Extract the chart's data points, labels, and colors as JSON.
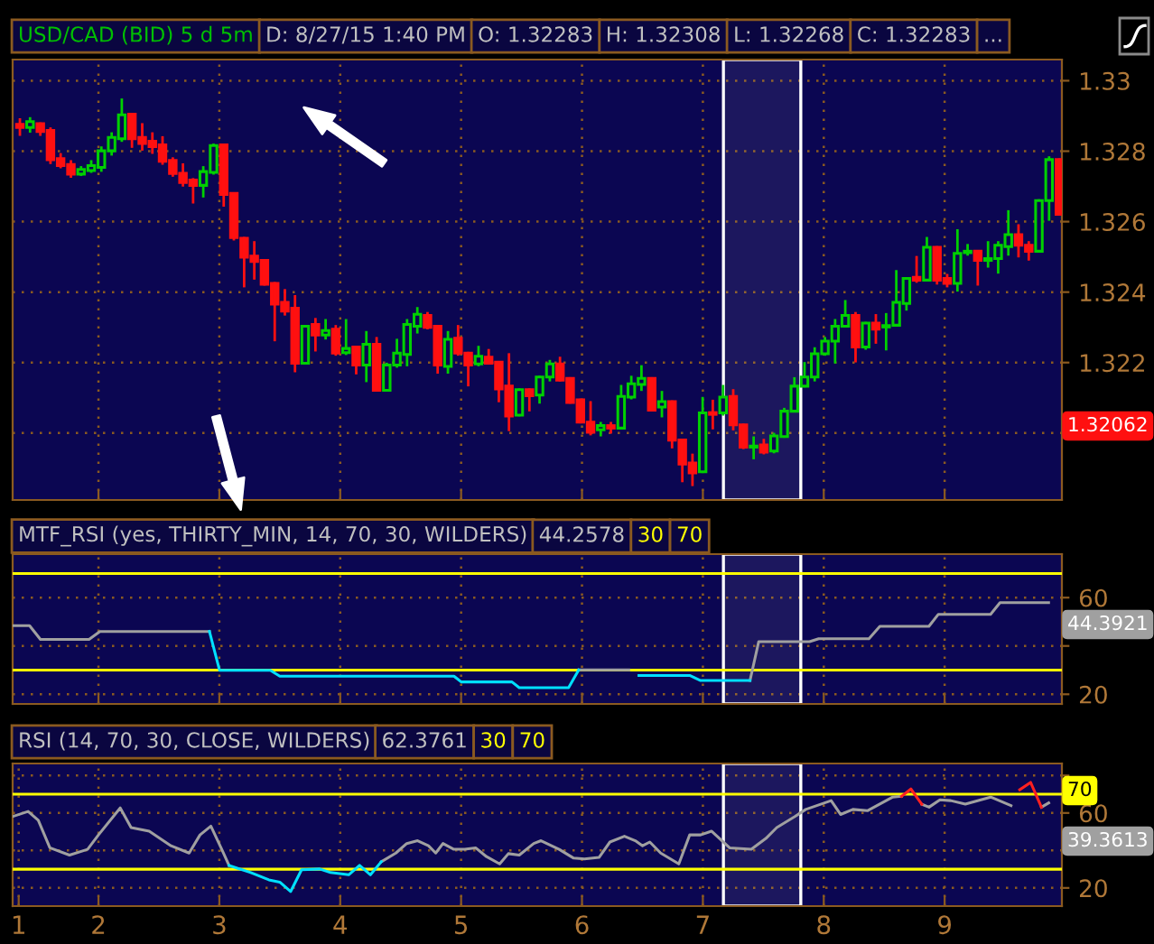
{
  "chart_data": [
    {
      "type": "candlestick",
      "title": "USD/CAD (BID) 5 d 5m",
      "annotations": [
        "D: 8/27/15 1:40 PM",
        "O: 1.32283",
        "H: 1.32308",
        "L: 1.32268",
        "C: 1.32283",
        "...",
        "1.32062"
      ],
      "colors": [
        "#ff1010",
        "#00d000",
        "#ff1010",
        "#ff1010",
        "#ff1010",
        "#ff1010",
        "#00d000",
        "#00d000",
        "#00d000",
        "#00d000",
        "#00d000",
        "#ff1010",
        "#ff1010",
        "#ff1010",
        "#ff1010",
        "#ff1010",
        "#ff1010",
        "#ff1010",
        "#00d000",
        "#00d000",
        "#ff1010",
        "#ff1010",
        "#ff1010",
        "#ff1010",
        "#ff1010",
        "#ff1010",
        "#ff1010",
        "#ff1010",
        "#00d000",
        "#ff1010",
        "#00d000",
        "#ff1010",
        "#00d000",
        "#ff1010",
        "#00d000",
        "#ff1010",
        "#00d000",
        "#00d000",
        "#00d000",
        "#00d000",
        "#ff1010",
        "#ff1010",
        "#00d000",
        "#ff1010",
        "#ff1010",
        "#00d000",
        "#ff1010",
        "#ff1010",
        "#ff1010",
        "#00d000",
        "#ff1010",
        "#00d000",
        "#00d000",
        "#ff1010",
        "#ff1010",
        "#ff1010",
        "#ff1010",
        "#00d000",
        "#ff1010",
        "#00d000",
        "#00d000",
        "#00d000",
        "#ff1010",
        "#00d000",
        "#ff1010",
        "#ff1010",
        "#ff1010",
        "#00d000",
        "#ff1010",
        "#00d000",
        "#ff1010",
        "#ff1010",
        "#00d000",
        "#ff1010",
        "#00d000",
        "#00d000",
        "#00d000",
        "#00d000",
        "#00d000",
        "#00d000",
        "#00d000",
        "#00d000",
        "#ff1010",
        "#00d000",
        "#ff1010",
        "#00d000",
        "#00d000",
        "#00d000",
        "#ff1010",
        "#00d000",
        "#ff1010",
        "#ff1010",
        "#00d000",
        "#00d000",
        "#ff1010",
        "#00d000",
        "#00d000",
        "#00d000",
        "#ff1010",
        "#ff1010",
        "#00d000",
        "#00d000",
        "#ff1010"
      ],
      "x": [
        1.35,
        1.434,
        1.519,
        1.603,
        1.687,
        1.772,
        1.856,
        1.94,
        2.024,
        2.109,
        2.193,
        2.277,
        2.362,
        2.446,
        2.53,
        2.615,
        2.699,
        2.783,
        2.867,
        2.952,
        3.036,
        3.12,
        3.205,
        3.289,
        3.373,
        3.458,
        3.542,
        3.626,
        3.71,
        3.795,
        3.879,
        3.963,
        4.048,
        4.132,
        4.216,
        4.301,
        4.385,
        4.469,
        4.553,
        4.638,
        4.722,
        4.806,
        4.891,
        4.975,
        5.059,
        5.144,
        5.228,
        5.312,
        5.396,
        5.481,
        5.565,
        5.649,
        5.734,
        5.818,
        5.902,
        5.987,
        6.071,
        6.155,
        6.239,
        6.324,
        6.408,
        6.492,
        6.577,
        6.661,
        6.745,
        6.83,
        6.914,
        6.998,
        7.082,
        7.167,
        7.251,
        7.335,
        7.42,
        7.504,
        7.588,
        7.673,
        7.757,
        7.841,
        7.925,
        8.01,
        8.094,
        8.178,
        8.263,
        8.347,
        8.431,
        8.516,
        8.6,
        8.684,
        8.768,
        8.853,
        8.937,
        9.021,
        9.106,
        9.19,
        9.274,
        9.359,
        9.443,
        9.527,
        9.611,
        9.696,
        9.78,
        9.864,
        9.949
      ],
      "ohlc": [
        [
          1.32876,
          1.3289,
          1.32847,
          1.32867
        ],
        [
          1.32867,
          1.32893,
          1.32856,
          1.32884
        ],
        [
          1.32878,
          1.32878,
          1.32847,
          1.32856
        ],
        [
          1.32859,
          1.32864,
          1.32767,
          1.32776
        ],
        [
          1.32779,
          1.32791,
          1.32755,
          1.32759
        ],
        [
          1.32762,
          1.32771,
          1.32728,
          1.32735
        ],
        [
          1.32735,
          1.32754,
          1.32733,
          1.32748
        ],
        [
          1.32745,
          1.32771,
          1.32742,
          1.32759
        ],
        [
          1.32754,
          1.3281,
          1.32745,
          1.32801
        ],
        [
          1.32801,
          1.3285,
          1.32791,
          1.32839
        ],
        [
          1.32835,
          1.32946,
          1.3283,
          1.32903
        ],
        [
          1.32905,
          1.32905,
          1.32813,
          1.32835
        ],
        [
          1.32839,
          1.32876,
          1.32805,
          1.32822
        ],
        [
          1.32828,
          1.3285,
          1.32796,
          1.32813
        ],
        [
          1.32818,
          1.32839,
          1.32765,
          1.32771
        ],
        [
          1.32774,
          1.32779,
          1.32731,
          1.32737
        ],
        [
          1.32737,
          1.32762,
          1.32703,
          1.32711
        ],
        [
          1.32718,
          1.3272,
          1.32655,
          1.32703
        ],
        [
          1.32703,
          1.32754,
          1.32672,
          1.32742
        ],
        [
          1.3274,
          1.32818,
          1.32737,
          1.32816
        ],
        [
          1.32818,
          1.32818,
          1.32646,
          1.32677
        ],
        [
          1.3268,
          1.3268,
          1.3255,
          1.32555
        ],
        [
          1.32553,
          1.32553,
          1.32417,
          1.32499
        ],
        [
          1.32502,
          1.32541,
          1.32439,
          1.32487
        ],
        [
          1.3249,
          1.3249,
          1.32422,
          1.32422
        ],
        [
          1.32425,
          1.32425,
          1.32264,
          1.32366
        ],
        [
          1.32371,
          1.32405,
          1.32337,
          1.32346
        ],
        [
          1.32354,
          1.32388,
          1.32176,
          1.32198
        ],
        [
          1.32198,
          1.32303,
          1.32198,
          1.32303
        ],
        [
          1.32308,
          1.32323,
          1.32235,
          1.32278
        ],
        [
          1.32278,
          1.3232,
          1.32269,
          1.32291
        ],
        [
          1.32295,
          1.32303,
          1.32223,
          1.32227
        ],
        [
          1.32228,
          1.3232,
          1.32225,
          1.3224
        ],
        [
          1.32244,
          1.32244,
          1.3217,
          1.32193
        ],
        [
          1.32193,
          1.32286,
          1.32148,
          1.32252
        ],
        [
          1.32252,
          1.32269,
          1.32121,
          1.32121
        ],
        [
          1.32121,
          1.32196,
          1.32121,
          1.32193
        ],
        [
          1.32193,
          1.32264,
          1.32189,
          1.32227
        ],
        [
          1.32223,
          1.3232,
          1.32193,
          1.32308
        ],
        [
          1.32303,
          1.32354,
          1.32286,
          1.32337
        ],
        [
          1.32334,
          1.3234,
          1.32298,
          1.323
        ],
        [
          1.32303,
          1.32303,
          1.32172,
          1.32193
        ],
        [
          1.32189,
          1.32286,
          1.32172,
          1.32266
        ],
        [
          1.32269,
          1.32303,
          1.32223,
          1.32227
        ],
        [
          1.32227,
          1.32227,
          1.32136,
          1.32193
        ],
        [
          1.32196,
          1.32244,
          1.32193,
          1.32218
        ],
        [
          1.32215,
          1.32235,
          1.32198,
          1.32198
        ],
        [
          1.32201,
          1.32201,
          1.32091,
          1.32125
        ],
        [
          1.32133,
          1.32223,
          1.32009,
          1.32048
        ],
        [
          1.32051,
          1.32123,
          1.32051,
          1.32123
        ],
        [
          1.32123,
          1.32123,
          1.32065,
          1.32106
        ],
        [
          1.32108,
          1.32159,
          1.32087,
          1.32159
        ],
        [
          1.32159,
          1.32204,
          1.3215,
          1.32196
        ],
        [
          1.32196,
          1.32213,
          1.3215,
          1.3215
        ],
        [
          1.32155,
          1.32155,
          1.32087,
          1.32087
        ],
        [
          1.32094,
          1.32094,
          1.32031,
          1.32031
        ],
        [
          1.32031,
          1.32087,
          1.31997,
          1.32002
        ],
        [
          1.32009,
          1.32028,
          1.31994,
          1.32021
        ],
        [
          1.32021,
          1.32028,
          1.32002,
          1.32014
        ],
        [
          1.32014,
          1.32133,
          1.32014,
          1.32104
        ],
        [
          1.32102,
          1.32159,
          1.32099,
          1.3214
        ],
        [
          1.32138,
          1.32189,
          1.32123,
          1.32155
        ],
        [
          1.32155,
          1.32155,
          1.32065,
          1.32065
        ],
        [
          1.32074,
          1.32116,
          1.32048,
          1.32089
        ],
        [
          1.32089,
          1.32089,
          1.3196,
          1.3198
        ],
        [
          1.3198,
          1.3198,
          1.31864,
          1.31912
        ],
        [
          1.31915,
          1.31938,
          1.31853,
          1.31887
        ],
        [
          1.3189,
          1.32099,
          1.3189,
          1.32057
        ],
        [
          1.32058,
          1.32091,
          1.32014,
          1.32053
        ],
        [
          1.32057,
          1.32133,
          1.32053,
          1.32102
        ],
        [
          1.32104,
          1.32121,
          1.32011,
          1.32023
        ],
        [
          1.32023,
          1.32023,
          1.31958,
          1.3196
        ],
        [
          1.3196,
          1.31987,
          1.31929,
          1.31963
        ],
        [
          1.31966,
          1.3198,
          1.31943,
          1.31946
        ],
        [
          1.31949,
          1.31997,
          1.31946,
          1.31992
        ],
        [
          1.3199,
          1.32068,
          1.3199,
          1.32062
        ],
        [
          1.32062,
          1.32155,
          1.32062,
          1.32133
        ],
        [
          1.32133,
          1.32198,
          1.32133,
          1.32159
        ],
        [
          1.32159,
          1.3224,
          1.3215,
          1.32225
        ],
        [
          1.32225,
          1.32269,
          1.32223,
          1.32261
        ],
        [
          1.32261,
          1.3232,
          1.32201,
          1.32303
        ],
        [
          1.32303,
          1.32374,
          1.32303,
          1.32334
        ],
        [
          1.32334,
          1.3234,
          1.32204,
          1.32244
        ],
        [
          1.32244,
          1.32312,
          1.3224,
          1.32312
        ],
        [
          1.32312,
          1.32334,
          1.32257,
          1.32295
        ],
        [
          1.32301,
          1.32337,
          1.32238,
          1.32305
        ],
        [
          1.32306,
          1.32459,
          1.32306,
          1.32371
        ],
        [
          1.32368,
          1.32439,
          1.32351,
          1.32439
        ],
        [
          1.32442,
          1.32499,
          1.3243,
          1.32434
        ],
        [
          1.32434,
          1.32553,
          1.32434,
          1.32527
        ],
        [
          1.32527,
          1.32527,
          1.32425,
          1.32434
        ],
        [
          1.32439,
          1.32448,
          1.32417,
          1.32425
        ],
        [
          1.32425,
          1.32575,
          1.32405,
          1.3251
        ],
        [
          1.32512,
          1.32533,
          1.32507,
          1.32516
        ],
        [
          1.32516,
          1.32516,
          1.32422,
          1.3249
        ],
        [
          1.3249,
          1.32541,
          1.32473,
          1.32495
        ],
        [
          1.32495,
          1.32541,
          1.32456,
          1.32533
        ],
        [
          1.32529,
          1.32629,
          1.32507,
          1.32563
        ],
        [
          1.32563,
          1.32589,
          1.32502,
          1.32533
        ],
        [
          1.32533,
          1.32541,
          1.32493,
          1.32516
        ],
        [
          1.32516,
          1.3266,
          1.32516,
          1.3266
        ],
        [
          1.3266,
          1.32782,
          1.32606,
          1.32776
        ],
        [
          1.32776,
          1.32776,
          1.32621,
          1.32621
        ]
      ],
      "xlim": [
        1.29,
        9.97
      ],
      "ylim": [
        1.3181,
        1.3306
      ],
      "xticks": [
        2,
        3,
        4,
        5,
        6,
        7,
        8,
        9
      ],
      "yticks": [
        {
          "value": 1.32,
          "label": null
        },
        1.322,
        1.324,
        1.326,
        1.328,
        1.33
      ],
      "bands": [
        {
          "axis": "x",
          "from": 7.17,
          "to": 7.81,
          "color": "#ffffff"
        }
      ],
      "tick_labels": "y",
      "grid": true
    },
    {
      "type": "line",
      "title": "MTF_RSI (yes, THIRTY_MIN, 14, 70, 30, WILDERS)",
      "bands": [
        {
          "axis": "x",
          "from": 7.17,
          "to": 7.81,
          "color": "#ffffff"
        }
      ],
      "annotations": [
        "44.2578",
        "44.3921"
      ],
      "series": [
        {
          "color": "#a0a0a0",
          "x": [
            1.29,
            1.43,
            1.52,
            1.922,
            2.012,
            2.918,
            3.002,
            5.973,
            6.387,
            6.981,
            7.39,
            7.462,
            7.882,
            7.958,
            8.374,
            8.464,
            8.87,
            8.948,
            9.38,
            9.458,
            9.86
          ],
          "values": [
            48.4,
            48.4,
            42.7,
            42.7,
            46.0,
            46.0,
            null,
            30.1,
            30.1,
            null,
            25.7,
            41.8,
            41.8,
            43.0,
            43.0,
            48.1,
            48.1,
            53.1,
            53.1,
            57.9,
            57.9
          ]
        },
        {
          "color": "#00e0ff",
          "x": [
            2.918,
            3.002,
            3.422,
            3.5,
            4.941,
            5.001,
            5.421,
            5.481,
            5.889,
            5.973,
            6.387,
            6.471,
            6.891,
            6.981,
            7.39
          ],
          "values": [
            46.0,
            29.9,
            29.9,
            27.5,
            27.5,
            25.1,
            25.1,
            22.7,
            22.7,
            30.1,
            null,
            27.8,
            27.8,
            25.7,
            25.7
          ]
        }
      ],
      "ref_lines": [
        {
          "axis": "y",
          "value": 30,
          "label": "30",
          "color": "#ffff00"
        },
        {
          "axis": "y",
          "value": 70,
          "label": "70",
          "color": "#ffff00"
        }
      ],
      "xlim": [
        1.29,
        9.97
      ],
      "ylim": [
        16,
        78
      ],
      "xticks": [
        2,
        3,
        4,
        5,
        6,
        7,
        8,
        9
      ],
      "yticks": [
        20,
        {
          "value": 40,
          "label": null
        },
        60
      ],
      "tick_labels": "y",
      "grid": true
    },
    {
      "type": "line",
      "title": "RSI (14, 70, 30, CLOSE, WILDERS)",
      "bands": [
        {
          "axis": "x",
          "from": 7.17,
          "to": 7.81,
          "color": "#ffffff"
        }
      ],
      "annotations": [
        "62.3761",
        "70",
        "39.3613"
      ],
      "series": [
        {
          "color": "#a0a0a0",
          "x": [
            1.29,
            1.418,
            1.502,
            1.598,
            1.76,
            1.91,
            2.0,
            2.18,
            2.27,
            2.42,
            2.6,
            2.75,
            2.84,
            2.93,
            3.02,
            3.08,
            3.26,
            4.25,
            4.34,
            4.46,
            4.55,
            4.64,
            4.73,
            4.79,
            4.85,
            4.94,
            5.03,
            5.12,
            5.21,
            5.319,
            5.391,
            5.481,
            5.601,
            5.661,
            5.811,
            5.931,
            6.021,
            6.141,
            6.231,
            6.351,
            6.441,
            6.501,
            6.561,
            6.651,
            6.801,
            6.891,
            6.981,
            7.071,
            7.221,
            7.401,
            7.521,
            7.611,
            7.761,
            7.851,
            8.061,
            8.139,
            8.241,
            8.361,
            8.571,
            8.643,
            8.721,
            8.811,
            8.871,
            8.961,
            9.051,
            9.171,
            9.381,
            9.549,
            9.621,
            9.711,
            9.801,
            9.861
          ],
          "values": [
            58.1,
            60.8,
            56.1,
            41.4,
            37.5,
            40.6,
            48.3,
            62.7,
            52.2,
            50.3,
            42.5,
            38.6,
            48.3,
            53.0,
            40.6,
            32.0,
            null,
            null,
            34.0,
            38.6,
            43.7,
            45.2,
            42.5,
            38.6,
            43.7,
            40.6,
            40.6,
            41.4,
            36.7,
            32.8,
            38.3,
            37.5,
            43.7,
            45.2,
            40.6,
            35.9,
            35.5,
            36.3,
            44.5,
            47.6,
            45.2,
            42.5,
            44.5,
            38.6,
            32.8,
            48.3,
            48.3,
            50.3,
            41.4,
            40.6,
            46.4,
            52.2,
            58.1,
            61.9,
            66.6,
            59.2,
            61.9,
            61.2,
            68.5,
            68.9,
            null,
            64.7,
            63.1,
            67.0,
            66.6,
            64.7,
            68.5,
            63.9,
            null,
            null,
            63.1,
            65.4
          ]
        },
        {
          "color": "#00e0ff",
          "x": [
            3.08,
            3.26,
            3.41,
            3.5,
            3.59,
            3.68,
            3.83,
            3.92,
            4.07,
            4.16,
            4.25,
            4.34
          ],
          "values": [
            32.0,
            28.2,
            24.3,
            23.1,
            18.1,
            29.7,
            30.1,
            28.2,
            27.0,
            32.0,
            27.0,
            34.0
          ]
        },
        {
          "color": "#ff2020",
          "x": [
            8.643,
            8.721,
            8.811,
            9.549,
            9.621,
            9.711,
            9.801
          ],
          "values": [
            68.9,
            72.8,
            64.7,
            null,
            72.4,
            76.3,
            63.1
          ]
        }
      ],
      "ref_lines": [
        {
          "axis": "y",
          "value": 30,
          "label": "30",
          "color": "#ffff00"
        },
        {
          "axis": "y",
          "value": 70,
          "label": "70",
          "color": "#ffff00"
        }
      ],
      "xlim": [
        1.29,
        9.97
      ],
      "ylim": [
        10.3,
        86.4
      ],
      "xticks": [
        {
          "value": 1.34,
          "label": "1"
        },
        2,
        3,
        4,
        5,
        6,
        7,
        8,
        9
      ],
      "yticks": [
        20,
        {
          "value": 40,
          "label": null
        },
        60,
        {
          "value": 80,
          "label": null
        }
      ],
      "grid": true
    }
  ]
}
